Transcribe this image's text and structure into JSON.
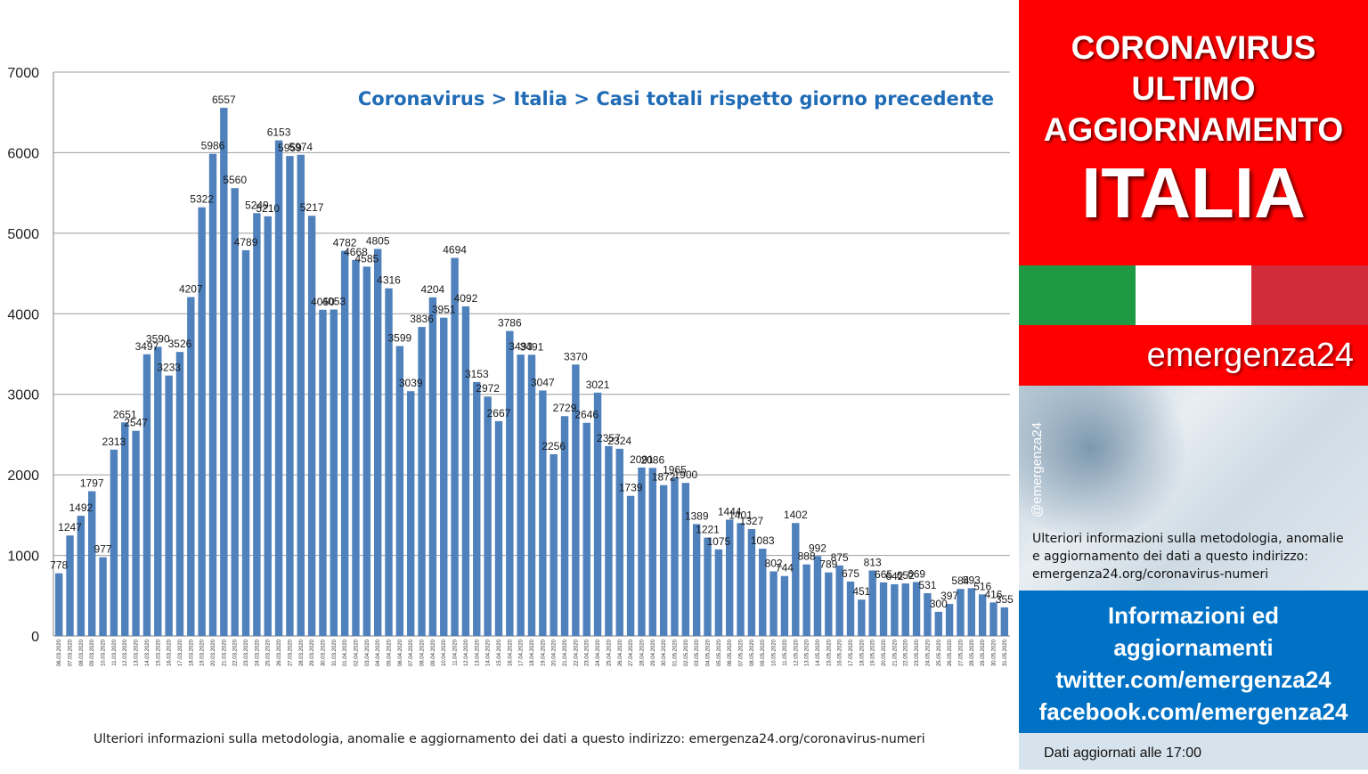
{
  "chart_data": {
    "type": "bar",
    "title": "Coronavirus > Italia > Casi totali rispetto giorno precedente",
    "xlabel": "",
    "ylabel": "",
    "ylim": [
      0,
      7000
    ],
    "yticks": [
      0,
      1000,
      2000,
      3000,
      4000,
      5000,
      6000,
      7000
    ],
    "grid": true,
    "legend": "none",
    "bar_color": "#4f81bd",
    "title_color": "#1f6bb5",
    "categories": [
      "06.03.2020",
      "07.03.2020",
      "08.03.2020",
      "09.03.2020",
      "10.03.2020",
      "11.03.2020",
      "12.03.2020",
      "13.03.2020",
      "14.03.2020",
      "15.03.2020",
      "16.03.2020",
      "17.03.2020",
      "18.03.2020",
      "19.03.2020",
      "20.03.2020",
      "21.03.2020",
      "22.03.2020",
      "23.03.2020",
      "24.03.2020",
      "25.03.2020",
      "26.03.2020",
      "27.03.2020",
      "28.03.2020",
      "29.03.2020",
      "30.03.2020",
      "31.03.2020",
      "01.04.2020",
      "02.04.2020",
      "03.04.2020",
      "04.04.2020",
      "05.04.2020",
      "06.04.2020",
      "07.04.2020",
      "08.04.2020",
      "09.04.2020",
      "10.04.2020",
      "11.04.2020",
      "12.04.2020",
      "13.04.2020",
      "14.04.2020",
      "15.04.2020",
      "16.04.2020",
      "17.04.2020",
      "18.04.2020",
      "19.04.2020",
      "20.04.2020",
      "21.04.2020",
      "22.04.2020",
      "23.04.2020",
      "24.04.2020",
      "25.04.2020",
      "26.04.2020",
      "27.04.2020",
      "28.04.2020",
      "29.04.2020",
      "30.04.2020",
      "01.05.2020",
      "02.05.2020",
      "03.05.2020",
      "04.05.2020",
      "05.05.2020",
      "06.05.2020",
      "07.05.2020",
      "08.05.2020",
      "09.05.2020",
      "10.05.2020",
      "11.05.2020",
      "12.05.2020",
      "13.05.2020",
      "14.05.2020",
      "15.05.2020",
      "16.05.2020",
      "17.05.2020",
      "18.05.2020",
      "19.05.2020",
      "20.05.2020",
      "21.05.2020",
      "22.05.2020",
      "23.05.2020",
      "24.05.2020",
      "25.05.2020",
      "26.05.2020",
      "27.05.2020",
      "28.05.2020",
      "29.05.2020",
      "30.05.2020",
      "31.05.2020"
    ],
    "values": [
      778,
      1247,
      1492,
      1797,
      977,
      2313,
      2651,
      2547,
      3497,
      3590,
      3233,
      3526,
      4207,
      5322,
      5986,
      6557,
      5560,
      4789,
      5249,
      5210,
      6153,
      5959,
      5974,
      5217,
      4050,
      4053,
      4782,
      4668,
      4585,
      4805,
      4316,
      3599,
      3039,
      3836,
      4204,
      3951,
      4694,
      4092,
      3153,
      2972,
      2667,
      3786,
      3493,
      3491,
      3047,
      2256,
      2729,
      3370,
      2646,
      3021,
      2357,
      2324,
      1739,
      2091,
      2086,
      1872,
      1965,
      1900,
      1389,
      1221,
      1075,
      1444,
      1401,
      1327,
      1083,
      802,
      744,
      1402,
      888,
      992,
      789,
      875,
      675,
      451,
      813,
      665,
      642,
      652,
      669,
      531,
      300,
      397,
      584,
      593,
      516,
      416,
      355
    ]
  },
  "footnote": "Ulteriori informazioni sulla metodologia, anomalie e aggiornamento dei dati a questo indirizzo: emergenza24.org/coronavirus-numeri",
  "panel": {
    "line1": "CORONAVIRUS",
    "line2": "ULTIMO",
    "line3": "AGGIORNAMENTO",
    "country": "ITALIA",
    "flag_colors": [
      "#1e9a45",
      "#ffffff",
      "#d22b3a"
    ],
    "brand": "emergenza24",
    "handle": "@emergenza24",
    "more_info_1": "Ulteriori informazioni sulla metodologia, anomalie",
    "more_info_2": "e aggiornamento dei dati a questo indirizzo:",
    "more_info_3": "emergenza24.org/coronavirus-numeri",
    "blue_1": "Informazioni ed",
    "blue_2": "aggiornamenti",
    "blue_3": "twitter.com/emergenza24",
    "blue_4": "facebook.com/emergenza24",
    "updated": "Dati aggiornati alle 17:00"
  }
}
